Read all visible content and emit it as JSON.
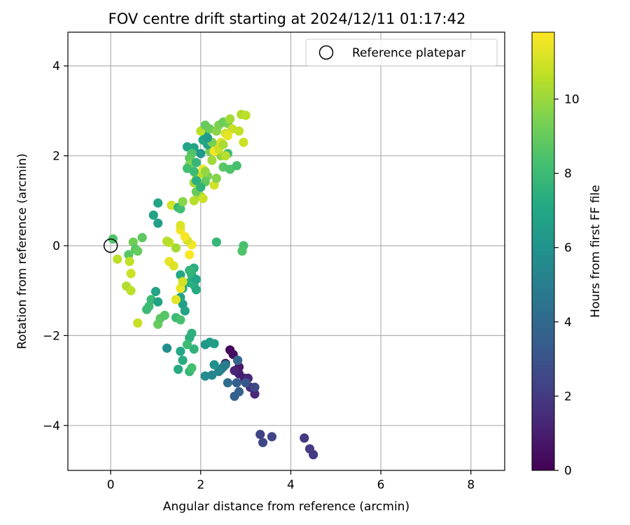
{
  "chart_data": {
    "type": "scatter",
    "title": "FOV centre drift starting at 2024/12/11 01:17:42",
    "xlabel": "Angular distance from reference (arcmin)",
    "ylabel": "Rotation from reference (arcmin)",
    "xlim": [
      -0.95,
      8.75
    ],
    "ylim": [
      -5.0,
      4.75
    ],
    "xticks": [
      0,
      2,
      4,
      6,
      8
    ],
    "yticks": [
      -4,
      -2,
      0,
      2,
      4
    ],
    "xtick_labels": [
      "0",
      "2",
      "4",
      "6",
      "8"
    ],
    "ytick_labels": [
      "−4",
      "−2",
      "0",
      "2",
      "4"
    ],
    "grid": true,
    "legend": {
      "position": "top-right",
      "entries": [
        {
          "label": "Reference platepar",
          "marker": "open-circle"
        }
      ]
    },
    "reference_point": {
      "x": 0,
      "y": 0
    },
    "colorbar": {
      "label": "Hours from first FF file",
      "colormap": "viridis",
      "range": [
        0,
        11.8
      ],
      "ticks": [
        0,
        2,
        4,
        6,
        8,
        10
      ],
      "tick_labels": [
        "0",
        "2",
        "4",
        "6",
        "8",
        "10"
      ]
    },
    "points": [
      {
        "x": 2.65,
        "y": -2.32,
        "c": 0.2
      },
      {
        "x": 2.72,
        "y": -2.42,
        "c": 0.4
      },
      {
        "x": 2.82,
        "y": -2.55,
        "c": 0.6
      },
      {
        "x": 2.85,
        "y": -2.7,
        "c": 0.8
      },
      {
        "x": 2.85,
        "y": -2.85,
        "c": 1.0
      },
      {
        "x": 2.97,
        "y": -2.95,
        "c": 1.0
      },
      {
        "x": 2.75,
        "y": -2.78,
        "c": 1.2
      },
      {
        "x": 3.05,
        "y": -2.95,
        "c": 1.3
      },
      {
        "x": 2.55,
        "y": -2.62,
        "c": 0.3
      },
      {
        "x": 3.1,
        "y": -3.15,
        "c": 1.6
      },
      {
        "x": 3.2,
        "y": -3.3,
        "c": 1.4
      },
      {
        "x": 3.2,
        "y": -3.15,
        "c": 2.6
      },
      {
        "x": 3.0,
        "y": -3.05,
        "c": 3.2
      },
      {
        "x": 2.8,
        "y": -3.05,
        "c": 3.5
      },
      {
        "x": 2.75,
        "y": -3.35,
        "c": 3.6
      },
      {
        "x": 2.85,
        "y": -3.25,
        "c": 3.7
      },
      {
        "x": 2.6,
        "y": -3.05,
        "c": 4.2
      },
      {
        "x": 2.45,
        "y": -2.75,
        "c": 4.5
      },
      {
        "x": 2.5,
        "y": -2.7,
        "c": 4.8
      },
      {
        "x": 2.55,
        "y": -2.65,
        "c": 5.0
      },
      {
        "x": 2.82,
        "y": -2.55,
        "c": 3.9
      },
      {
        "x": 2.4,
        "y": -2.8,
        "c": 5.3
      },
      {
        "x": 2.25,
        "y": -2.88,
        "c": 5.4
      },
      {
        "x": 2.1,
        "y": -2.9,
        "c": 5.6
      },
      {
        "x": 2.3,
        "y": -2.65,
        "c": 5.9
      },
      {
        "x": 2.1,
        "y": -2.2,
        "c": 6.2
      },
      {
        "x": 2.2,
        "y": -2.15,
        "c": 6.4
      },
      {
        "x": 2.3,
        "y": -2.18,
        "c": 6.5
      },
      {
        "x": 1.25,
        "y": -2.28,
        "c": 5.8
      },
      {
        "x": 3.32,
        "y": -4.2,
        "c": 2.3
      },
      {
        "x": 3.38,
        "y": -4.38,
        "c": 2.5
      },
      {
        "x": 3.58,
        "y": -4.25,
        "c": 2.4
      },
      {
        "x": 4.3,
        "y": -4.28,
        "c": 1.9
      },
      {
        "x": 4.42,
        "y": -4.52,
        "c": 2.1
      },
      {
        "x": 4.5,
        "y": -4.65,
        "c": 2.0
      },
      {
        "x": 1.55,
        "y": -2.35,
        "c": 7.0
      },
      {
        "x": 1.5,
        "y": -2.75,
        "c": 7.2
      },
      {
        "x": 1.6,
        "y": -2.55,
        "c": 7.3
      },
      {
        "x": 1.75,
        "y": -2.05,
        "c": 7.4
      },
      {
        "x": 1.8,
        "y": -1.95,
        "c": 7.5
      },
      {
        "x": 1.85,
        "y": -2.3,
        "c": 7.6
      },
      {
        "x": 1.75,
        "y": -2.8,
        "c": 7.8
      },
      {
        "x": 1.7,
        "y": -2.2,
        "c": 8.0
      },
      {
        "x": 1.8,
        "y": -2.72,
        "c": 8.2
      },
      {
        "x": 1.45,
        "y": -1.6,
        "c": 8.0
      },
      {
        "x": 1.55,
        "y": -1.65,
        "c": 8.3
      },
      {
        "x": 1.05,
        "y": -1.75,
        "c": 9.0
      },
      {
        "x": 1.1,
        "y": -1.62,
        "c": 8.8
      },
      {
        "x": 1.2,
        "y": -1.55,
        "c": 8.7
      },
      {
        "x": 0.85,
        "y": -1.35,
        "c": 8.1
      },
      {
        "x": 0.8,
        "y": -1.42,
        "c": 8.0
      },
      {
        "x": 0.9,
        "y": -1.2,
        "c": 7.9
      },
      {
        "x": 1.05,
        "y": -1.25,
        "c": 6.8
      },
      {
        "x": 1.0,
        "y": -1.02,
        "c": 6.9
      },
      {
        "x": 1.6,
        "y": -1.3,
        "c": 6.6
      },
      {
        "x": 1.65,
        "y": -1.45,
        "c": 6.8
      },
      {
        "x": 1.55,
        "y": -1.15,
        "c": 6.9
      },
      {
        "x": 1.6,
        "y": -0.95,
        "c": 7.1
      },
      {
        "x": 1.75,
        "y": -0.82,
        "c": 7.3
      },
      {
        "x": 1.85,
        "y": -0.88,
        "c": 7.5
      },
      {
        "x": 1.8,
        "y": -0.65,
        "c": 7.6
      },
      {
        "x": 1.9,
        "y": -0.75,
        "c": 7.0
      },
      {
        "x": 1.9,
        "y": -0.98,
        "c": 7.2
      },
      {
        "x": 1.85,
        "y": -0.5,
        "c": 7.4
      },
      {
        "x": 1.75,
        "y": -0.55,
        "c": 7.7
      },
      {
        "x": 1.55,
        "y": -0.65,
        "c": 7.1
      },
      {
        "x": 2.35,
        "y": 0.08,
        "c": 7.8
      },
      {
        "x": 2.95,
        "y": 0.0,
        "c": 8.3
      },
      {
        "x": 2.92,
        "y": -0.12,
        "c": 8.5
      },
      {
        "x": 1.55,
        "y": -0.95,
        "c": 11.5
      },
      {
        "x": 1.45,
        "y": -1.2,
        "c": 11.3
      },
      {
        "x": 1.6,
        "y": -0.8,
        "c": 11.0
      },
      {
        "x": 1.3,
        "y": -0.35,
        "c": 11.4
      },
      {
        "x": 1.4,
        "y": -0.45,
        "c": 11.2
      },
      {
        "x": 1.75,
        "y": -0.2,
        "c": 11.8
      },
      {
        "x": 1.8,
        "y": 0.02,
        "c": 11.6
      },
      {
        "x": 1.7,
        "y": 0.12,
        "c": 11.0
      },
      {
        "x": 1.65,
        "y": 0.2,
        "c": 11.7
      },
      {
        "x": 1.55,
        "y": 0.35,
        "c": 11.6
      },
      {
        "x": 1.55,
        "y": 0.45,
        "c": 11.2
      },
      {
        "x": 1.45,
        "y": -0.05,
        "c": 10.2
      },
      {
        "x": 1.3,
        "y": 0.07,
        "c": 10.8
      },
      {
        "x": 1.25,
        "y": 0.1,
        "c": 10.5
      },
      {
        "x": 1.35,
        "y": 0.9,
        "c": 11.0
      },
      {
        "x": 0.05,
        "y": 0.15,
        "c": 8.5
      },
      {
        "x": 0.15,
        "y": -0.3,
        "c": 10.6
      },
      {
        "x": 0.4,
        "y": -0.2,
        "c": 8.7
      },
      {
        "x": 0.42,
        "y": -0.35,
        "c": 10.7
      },
      {
        "x": 0.45,
        "y": -0.62,
        "c": 10.9
      },
      {
        "x": 0.35,
        "y": -0.9,
        "c": 10.4
      },
      {
        "x": 0.45,
        "y": -1.0,
        "c": 10.6
      },
      {
        "x": 0.6,
        "y": -1.72,
        "c": 10.8
      },
      {
        "x": 0.5,
        "y": 0.08,
        "c": 9.2
      },
      {
        "x": 0.55,
        "y": -0.08,
        "c": 8.6
      },
      {
        "x": 0.6,
        "y": -0.12,
        "c": 9.0
      },
      {
        "x": 0.7,
        "y": 0.18,
        "c": 8.8
      },
      {
        "x": 0.95,
        "y": 0.68,
        "c": 6.8
      },
      {
        "x": 1.05,
        "y": 0.5,
        "c": 6.6
      },
      {
        "x": 1.05,
        "y": 0.95,
        "c": 6.9
      },
      {
        "x": 1.5,
        "y": 0.85,
        "c": 7.6
      },
      {
        "x": 1.55,
        "y": 0.82,
        "c": 8.2
      },
      {
        "x": 1.6,
        "y": 0.98,
        "c": 9.7
      },
      {
        "x": 1.85,
        "y": 1.0,
        "c": 10.5
      },
      {
        "x": 2.0,
        "y": 1.1,
        "c": 10.3
      },
      {
        "x": 2.05,
        "y": 1.05,
        "c": 10.9
      },
      {
        "x": 1.9,
        "y": 1.2,
        "c": 9.1
      },
      {
        "x": 1.85,
        "y": 1.4,
        "c": 10.2
      },
      {
        "x": 1.9,
        "y": 1.55,
        "c": 11.2
      },
      {
        "x": 2.0,
        "y": 1.6,
        "c": 10.7
      },
      {
        "x": 2.05,
        "y": 1.7,
        "c": 11.5
      },
      {
        "x": 2.15,
        "y": 1.55,
        "c": 9.4
      },
      {
        "x": 2.1,
        "y": 1.42,
        "c": 8.9
      },
      {
        "x": 2.3,
        "y": 1.35,
        "c": 11.0
      },
      {
        "x": 2.35,
        "y": 1.5,
        "c": 9.6
      },
      {
        "x": 2.25,
        "y": 1.9,
        "c": 10.1
      },
      {
        "x": 2.2,
        "y": 2.1,
        "c": 9.3
      },
      {
        "x": 2.3,
        "y": 2.2,
        "c": 10.6
      },
      {
        "x": 2.45,
        "y": 2.0,
        "c": 9.8
      },
      {
        "x": 2.5,
        "y": 1.75,
        "c": 8.7
      },
      {
        "x": 2.65,
        "y": 1.7,
        "c": 8.5
      },
      {
        "x": 2.8,
        "y": 1.78,
        "c": 8.3
      },
      {
        "x": 2.6,
        "y": 2.05,
        "c": 8.1
      },
      {
        "x": 2.15,
        "y": 2.25,
        "c": 6.8
      },
      {
        "x": 2.05,
        "y": 2.35,
        "c": 7.0
      },
      {
        "x": 2.1,
        "y": 2.5,
        "c": 7.2
      },
      {
        "x": 2.0,
        "y": 2.55,
        "c": 10.6
      },
      {
        "x": 2.2,
        "y": 2.6,
        "c": 9.2
      },
      {
        "x": 2.35,
        "y": 2.55,
        "c": 9.7
      },
      {
        "x": 2.4,
        "y": 2.68,
        "c": 9.5
      },
      {
        "x": 2.5,
        "y": 2.75,
        "c": 9.1
      },
      {
        "x": 2.6,
        "y": 2.72,
        "c": 9.3
      },
      {
        "x": 2.65,
        "y": 2.82,
        "c": 10.2
      },
      {
        "x": 2.7,
        "y": 2.6,
        "c": 10.8
      },
      {
        "x": 2.55,
        "y": 2.5,
        "c": 11.0
      },
      {
        "x": 2.6,
        "y": 2.45,
        "c": 11.4
      },
      {
        "x": 2.45,
        "y": 2.3,
        "c": 11.2
      },
      {
        "x": 2.3,
        "y": 2.1,
        "c": 11.6
      },
      {
        "x": 2.4,
        "y": 2.15,
        "c": 10.9
      },
      {
        "x": 2.55,
        "y": 2.0,
        "c": 10.5
      },
      {
        "x": 2.85,
        "y": 2.55,
        "c": 10.7
      },
      {
        "x": 2.9,
        "y": 2.92,
        "c": 10.4
      },
      {
        "x": 3.0,
        "y": 2.9,
        "c": 10.6
      },
      {
        "x": 2.95,
        "y": 2.3,
        "c": 10.9
      },
      {
        "x": 2.1,
        "y": 2.68,
        "c": 9.0
      },
      {
        "x": 1.7,
        "y": 2.2,
        "c": 7.0
      },
      {
        "x": 1.85,
        "y": 2.18,
        "c": 6.9
      },
      {
        "x": 1.8,
        "y": 2.05,
        "c": 8.5
      },
      {
        "x": 1.75,
        "y": 1.95,
        "c": 8.8
      },
      {
        "x": 1.8,
        "y": 1.88,
        "c": 9.0
      },
      {
        "x": 1.75,
        "y": 1.8,
        "c": 9.5
      },
      {
        "x": 1.7,
        "y": 1.72,
        "c": 8.2
      },
      {
        "x": 1.85,
        "y": 1.65,
        "c": 8.0
      },
      {
        "x": 1.9,
        "y": 1.45,
        "c": 7.4
      },
      {
        "x": 2.0,
        "y": 1.3,
        "c": 7.6
      },
      {
        "x": 2.1,
        "y": 1.65,
        "c": 9.9
      },
      {
        "x": 2.25,
        "y": 2.3,
        "c": 9.4
      },
      {
        "x": 2.0,
        "y": 2.05,
        "c": 6.3
      },
      {
        "x": 2.15,
        "y": 2.4,
        "c": 6.5
      },
      {
        "x": 2.5,
        "y": 2.25,
        "c": 10.3
      },
      {
        "x": 1.9,
        "y": 1.85,
        "c": 7.8
      }
    ]
  }
}
